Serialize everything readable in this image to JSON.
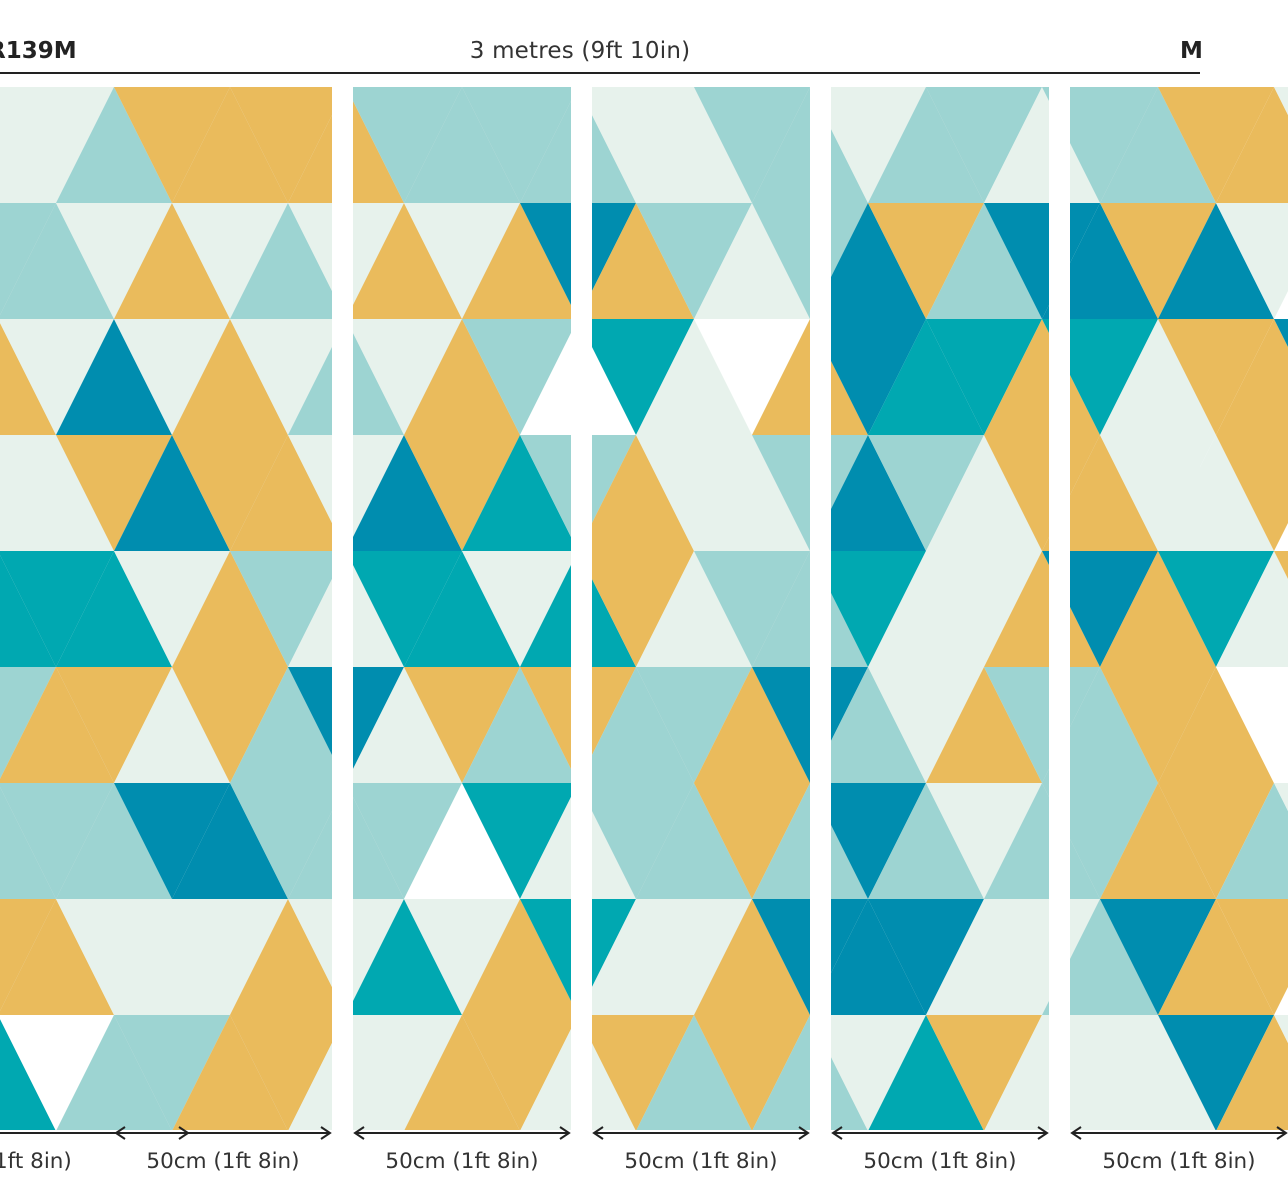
{
  "header": {
    "product_code_left": "R139M",
    "product_code_right": "M",
    "total_width": "3 metres (9ft 10in)"
  },
  "palette": {
    "pale_mint": "#E7F2EC",
    "aqua": "#9DD4D2",
    "mustard": "#EABB5C",
    "teal": "#00A8B1",
    "petrol_blue": "#008DAF",
    "white": "#FFFFFF",
    "rule_black": "#222222"
  },
  "panels": [
    {
      "width_label": "1ft 8in)"
    },
    {
      "width_label": "50cm (1ft 8in)"
    },
    {
      "width_label": "50cm (1ft 8in)"
    },
    {
      "width_label": "50cm (1ft 8in)"
    },
    {
      "width_label": "50cm (1ft 8in)"
    },
    {
      "width_label": "50cm (1ft 8in)"
    }
  ],
  "icons": {
    "dimension_arrow": "double-headed-arrow-icon"
  }
}
